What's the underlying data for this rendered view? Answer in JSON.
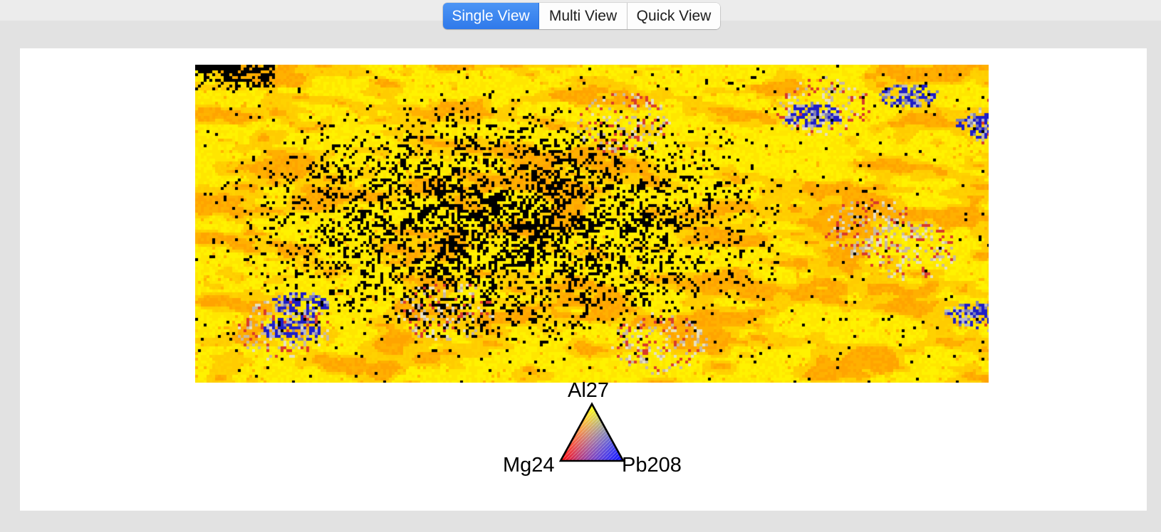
{
  "view_switcher": {
    "tabs": [
      {
        "label": "Single View",
        "active": true
      },
      {
        "label": "Multi View",
        "active": false
      },
      {
        "label": "Quick View",
        "active": false
      }
    ]
  },
  "ternary_legend": {
    "top_label": "Al27",
    "left_label": "Mg24",
    "right_label": "Pb208",
    "colors": {
      "top": "#ffff00",
      "left": "#ff0000",
      "right": "#0000ff"
    }
  },
  "element_map": {
    "palette": {
      "base": "#ffee00",
      "accent": "#ffa000",
      "empty": "#000000",
      "blue": "#1e1ec8"
    }
  }
}
